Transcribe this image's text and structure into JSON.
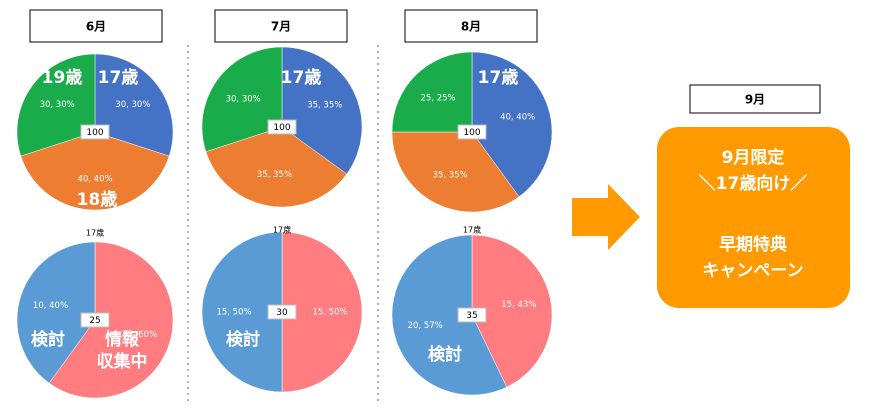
{
  "months": [
    "6月",
    "7月",
    "8月"
  ],
  "september": {
    "title": "9月",
    "lines": [
      "9月限定",
      "＼17歳向け／",
      "早期特典",
      "キャンペーン"
    ]
  },
  "chart_data": [
    {
      "type": "pie",
      "categories": [
        "17歳",
        "18歳",
        "19歳"
      ],
      "values": [
        30,
        40,
        30
      ],
      "value_labels": [
        "30, 30%",
        "40, 40%",
        "30, 30%"
      ],
      "colors": [
        "#4472c4",
        "#ed7d31",
        "#1aab4b"
      ],
      "total": 100
    },
    {
      "type": "pie",
      "categories": [
        "17歳",
        null,
        null
      ],
      "values": [
        35,
        35,
        30
      ],
      "value_labels": [
        "35, 35%",
        "35, 35%",
        "30, 30%"
      ],
      "colors": [
        "#4472c4",
        "#ed7d31",
        "#1aab4b"
      ],
      "total": 100
    },
    {
      "type": "pie",
      "categories": [
        "17歳",
        null,
        null
      ],
      "values": [
        40,
        35,
        25
      ],
      "value_labels": [
        "40, 40%",
        "35, 35%",
        "25, 25%"
      ],
      "colors": [
        "#4472c4",
        "#ed7d31",
        "#1aab4b"
      ],
      "total": 100
    },
    {
      "type": "pie",
      "title": "17歳",
      "categories": [
        "情報\n収集中",
        "検討"
      ],
      "values": [
        15,
        10
      ],
      "value_labels": [
        "15, 60%",
        "10, 40%"
      ],
      "colors": [
        "#ff7c80",
        "#5b9bd5"
      ],
      "total": 25
    },
    {
      "type": "pie",
      "title": "17歳",
      "categories": [
        null,
        "検討"
      ],
      "values": [
        15,
        15
      ],
      "value_labels": [
        "15, 50%",
        "15, 50%"
      ],
      "colors": [
        "#ff7c80",
        "#5b9bd5"
      ],
      "total": 30
    },
    {
      "type": "pie",
      "title": "17歳",
      "categories": [
        null,
        "検討"
      ],
      "values": [
        15,
        20
      ],
      "value_labels": [
        "15, 43%",
        "20, 57%"
      ],
      "colors": [
        "#ff7c80",
        "#5b9bd5"
      ],
      "total": 35
    }
  ]
}
